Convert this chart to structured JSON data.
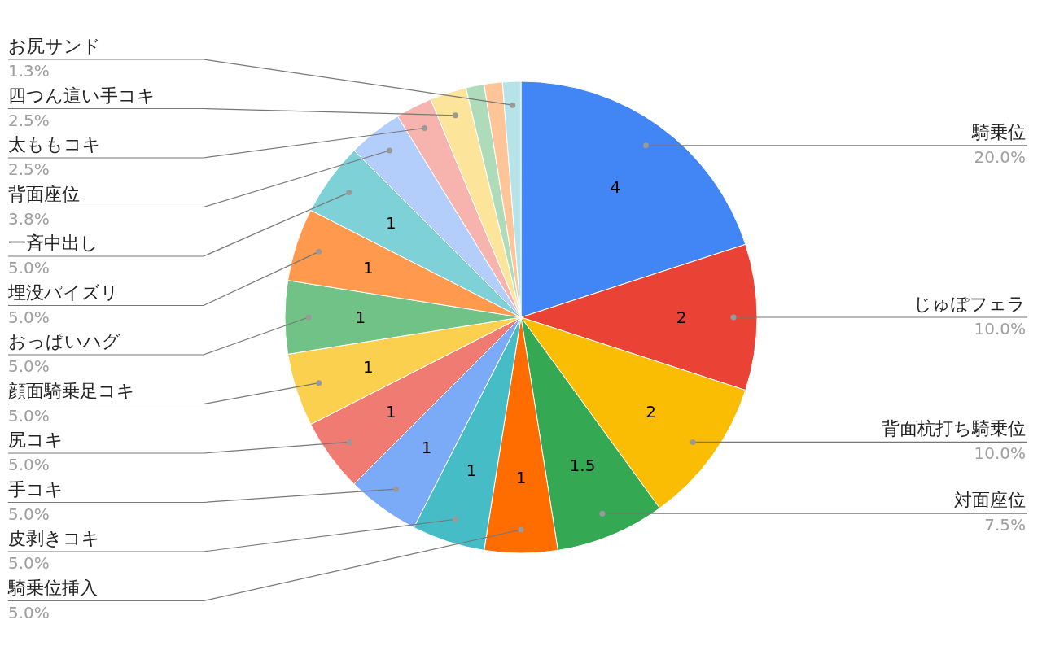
{
  "chart_data": {
    "type": "pie",
    "categories": [
      "騎乗位",
      "じゅぽフェラ",
      "背面杭打ち騎乗位",
      "対面座位",
      "騎乗位挿入",
      "皮剥きコキ",
      "手コキ",
      "尻コキ",
      "顔面騎乗足コキ",
      "おっぱいハグ",
      "埋没パイズリ",
      "一斉中出し",
      "背面座位",
      "太ももコキ",
      "四つん這い手コキ",
      null,
      null,
      "お尻サンド"
    ],
    "values": [
      20,
      10,
      10,
      7.5,
      5,
      5,
      5,
      5,
      5,
      5,
      5,
      5,
      3.75,
      2.5,
      2.5,
      1.25,
      1.25,
      1.25
    ],
    "value_labels": [
      "20.0%",
      "10.0%",
      "10.0%",
      "7.5%",
      "5.0%",
      "5.0%",
      "5.0%",
      "5.0%",
      "5.0%",
      "5.0%",
      "5.0%",
      "5.0%",
      "3.8%",
      "2.5%",
      "2.5%",
      null,
      null,
      "1.3%"
    ],
    "annotations": [
      {
        "text": "4",
        "x": "騎乗位"
      },
      {
        "text": "2",
        "x": "じゅぽフェラ"
      },
      {
        "text": "2",
        "x": "背面杭打ち騎乗位"
      },
      {
        "text": "1.5",
        "x": "対面座位"
      },
      {
        "text": "1",
        "x": "騎乗位挿入"
      },
      {
        "text": "1",
        "x": "皮剥きコキ"
      },
      {
        "text": "1",
        "x": "手コキ"
      },
      {
        "text": "1",
        "x": "尻コキ"
      },
      {
        "text": "1",
        "x": "顔面騎乗足コキ"
      },
      {
        "text": "1",
        "x": "おっぱいハグ"
      },
      {
        "text": "1",
        "x": "埋没パイズリ"
      },
      {
        "text": "1",
        "x": "一斉中出し"
      }
    ],
    "colors": [
      "#4285f4",
      "#ea4335",
      "#fbbc04",
      "#34a853",
      "#ff6d01",
      "#46bdc6",
      "#7baaf7",
      "#f07b72",
      "#fcd04f",
      "#71c287",
      "#ff994d",
      "#7ed1d7",
      "#b3cefb",
      "#f7b4ae",
      "#fde49b",
      "#aedcba",
      "#ffc599",
      "#b5e3e8"
    ]
  }
}
